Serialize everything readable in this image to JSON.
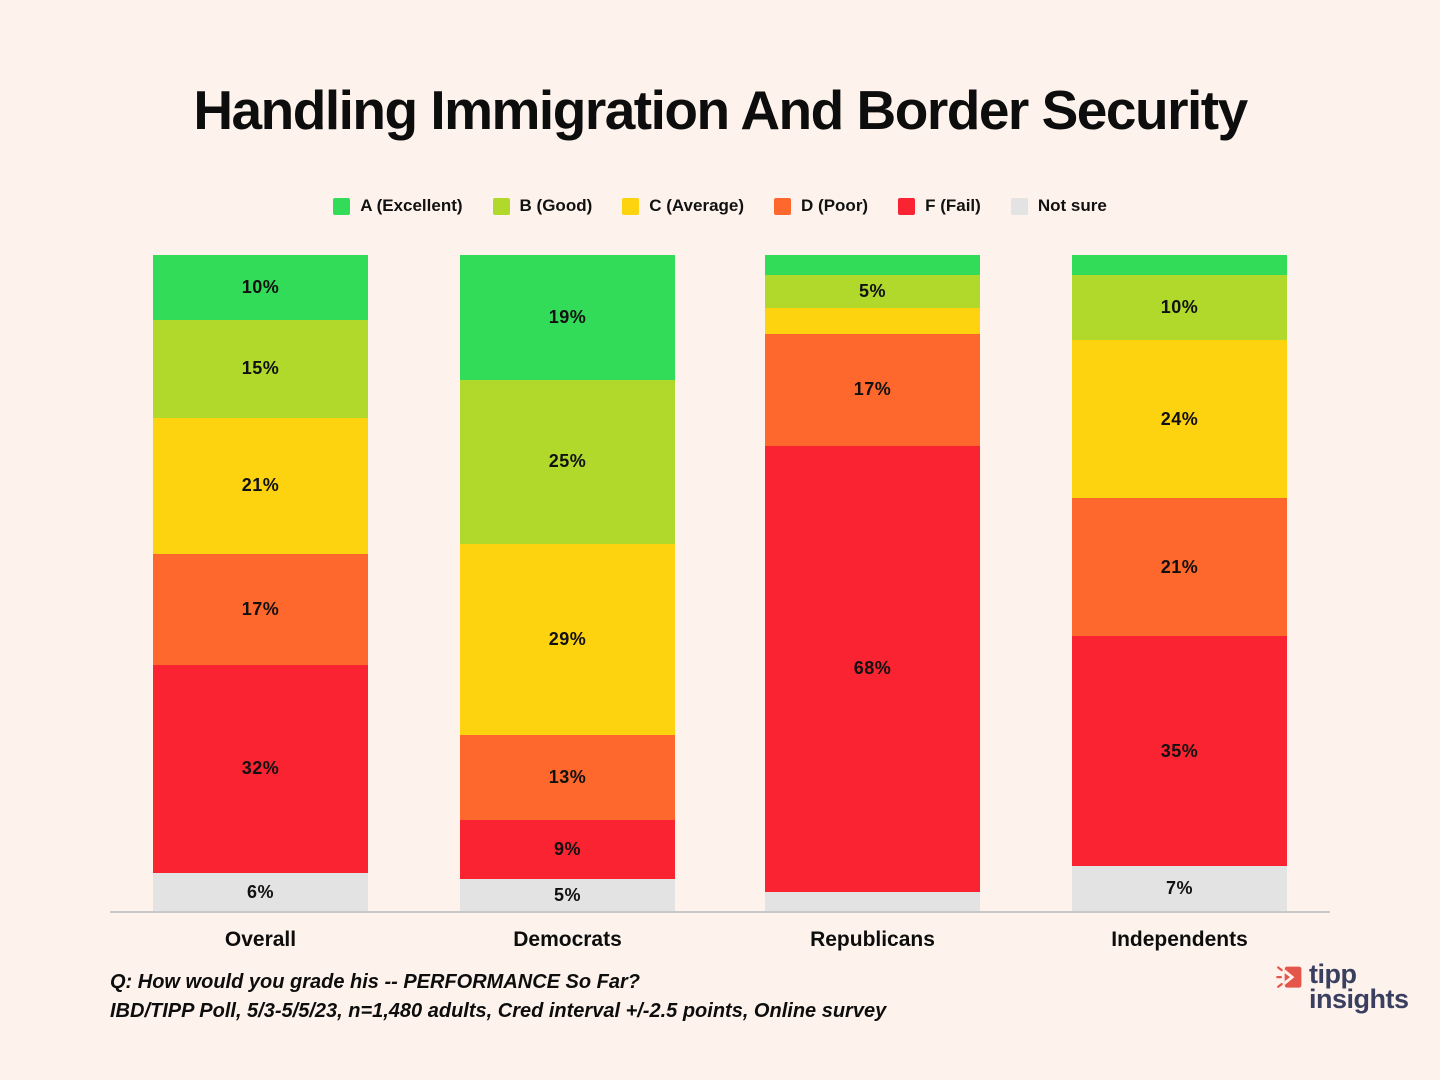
{
  "title": "Handling Immigration And Border Security",
  "chart_data": {
    "type": "bar",
    "stacked": true,
    "orientation": "vertical",
    "categories": [
      "Overall",
      "Democrats",
      "Republicans",
      "Independents"
    ],
    "series": [
      {
        "name": "A (Excellent)",
        "color": "#33dc58",
        "values": [
          10,
          19,
          3,
          3
        ]
      },
      {
        "name": "B (Good)",
        "color": "#b0d92c",
        "values": [
          15,
          25,
          5,
          10
        ]
      },
      {
        "name": "C (Average)",
        "color": "#fdd20e",
        "values": [
          21,
          29,
          4,
          24
        ]
      },
      {
        "name": "D (Poor)",
        "color": "#fe682c",
        "values": [
          17,
          13,
          17,
          21
        ]
      },
      {
        "name": "F (Fail)",
        "color": "#fa2332",
        "values": [
          32,
          9,
          68,
          35
        ]
      },
      {
        "name": "Not sure",
        "color": "#e3e3e3",
        "values": [
          6,
          5,
          3,
          7
        ]
      }
    ],
    "value_suffix": "%",
    "label_min_value_shown": 5,
    "ylim": [
      0,
      100
    ],
    "grid": false,
    "legend_position": "top",
    "title": "Handling Immigration And Border Security"
  },
  "footer": {
    "question": "Q:  How would you grade his -- PERFORMANCE So Far?",
    "source": "IBD/TIPP Poll, 5/3-5/5/23, n=1,480 adults, Cred interval +/-2.5 points, Online survey"
  },
  "logo": {
    "word1": "tipp",
    "word2": "insights",
    "text_color": "#3b3f5f",
    "icon_color": "#e4564a"
  },
  "colors": {
    "background": "#fdf3ec",
    "axis_line": "#c8c8c8",
    "label_text": "#111111"
  }
}
